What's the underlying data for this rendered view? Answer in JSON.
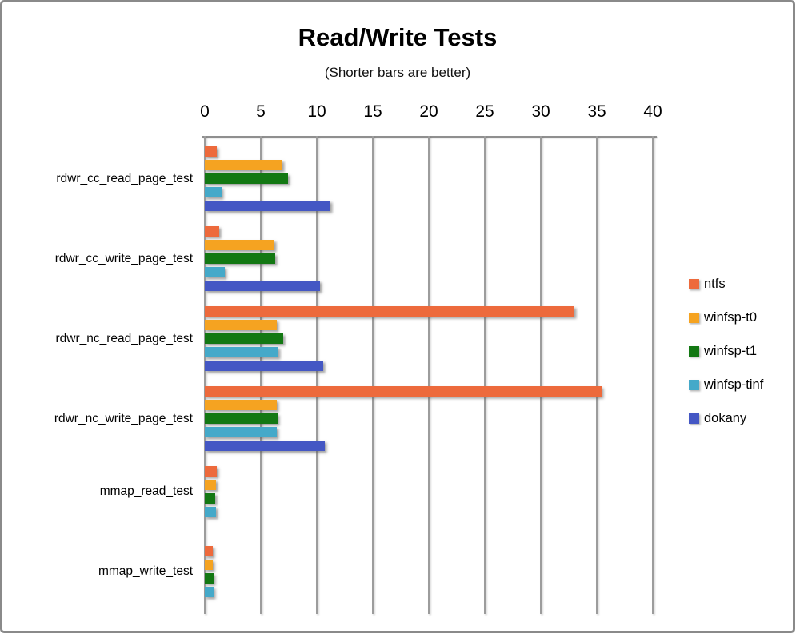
{
  "chart_data": {
    "type": "bar",
    "orientation": "horizontal",
    "title": "Read/Write Tests",
    "subtitle": "(Shorter bars are better)",
    "xlabel": "",
    "ylabel": "",
    "axis": {
      "position": "top",
      "min": 0,
      "max": 40,
      "tick_step": 5,
      "ticks": [
        0,
        5,
        10,
        15,
        20,
        25,
        30,
        35,
        40
      ]
    },
    "grid": true,
    "legend_position": "right",
    "categories": [
      "rdwr_cc_read_page_test",
      "rdwr_cc_write_page_test",
      "rdwr_nc_read_page_test",
      "rdwr_nc_write_page_test",
      "mmap_read_test",
      "mmap_write_test"
    ],
    "series": [
      {
        "name": "ntfs",
        "color": "#ED6A3C",
        "values": [
          1.1,
          1.3,
          33.0,
          35.4,
          1.1,
          0.7
        ]
      },
      {
        "name": "winfsp-t0",
        "color": "#F5A321",
        "values": [
          6.9,
          6.2,
          6.4,
          6.4,
          1.0,
          0.7
        ]
      },
      {
        "name": "winfsp-t1",
        "color": "#137813",
        "values": [
          7.4,
          6.3,
          7.0,
          6.5,
          0.9,
          0.8
        ]
      },
      {
        "name": "winfsp-tinf",
        "color": "#45A9C9",
        "values": [
          1.5,
          1.8,
          6.6,
          6.4,
          1.0,
          0.8
        ]
      },
      {
        "name": "dokany",
        "color": "#4457C4",
        "values": [
          11.2,
          10.3,
          10.6,
          10.7,
          0,
          0
        ]
      }
    ]
  },
  "frame": {
    "border_color": "#8a8a8a"
  }
}
